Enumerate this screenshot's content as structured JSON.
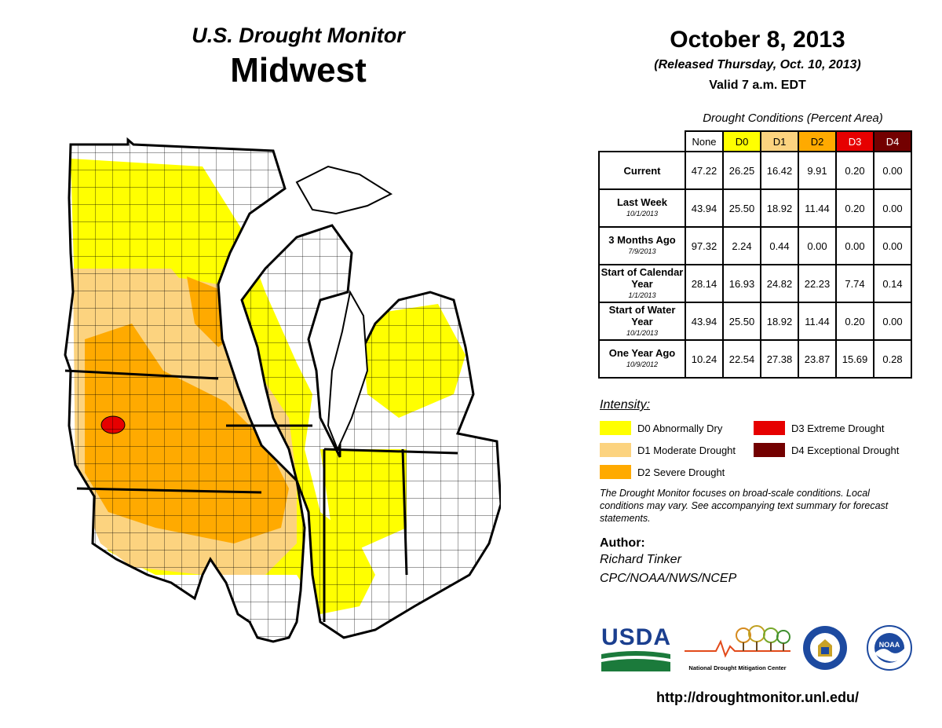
{
  "header": {
    "title": "U.S. Drought Monitor",
    "region": "Midwest",
    "date": "October 8, 2013",
    "released": "(Released Thursday, Oct. 10, 2013)",
    "valid": "Valid 7 a.m. EDT"
  },
  "table": {
    "caption": "Drought Conditions (Percent Area)",
    "columns": [
      {
        "label": "None",
        "color": "#ffffff"
      },
      {
        "label": "D0",
        "color": "#ffff00"
      },
      {
        "label": "D1",
        "color": "#fcd37f"
      },
      {
        "label": "D2",
        "color": "#ffaa00"
      },
      {
        "label": "D3",
        "color": "#e60000"
      },
      {
        "label": "D4",
        "color": "#730000"
      }
    ],
    "rows": [
      {
        "label": "Current",
        "sub": "",
        "values": [
          "47.22",
          "26.25",
          "16.42",
          "9.91",
          "0.20",
          "0.00"
        ]
      },
      {
        "label": "Last Week",
        "sub": "10/1/2013",
        "values": [
          "43.94",
          "25.50",
          "18.92",
          "11.44",
          "0.20",
          "0.00"
        ]
      },
      {
        "label": "3 Months Ago",
        "sub": "7/9/2013",
        "values": [
          "97.32",
          "2.24",
          "0.44",
          "0.00",
          "0.00",
          "0.00"
        ]
      },
      {
        "label": "Start of Calendar Year",
        "sub": "1/1/2013",
        "values": [
          "28.14",
          "16.93",
          "24.82",
          "22.23",
          "7.74",
          "0.14"
        ]
      },
      {
        "label": "Start of Water Year",
        "sub": "10/1/2013",
        "values": [
          "43.94",
          "25.50",
          "18.92",
          "11.44",
          "0.20",
          "0.00"
        ]
      },
      {
        "label": "One Year Ago",
        "sub": "10/9/2012",
        "values": [
          "10.24",
          "22.54",
          "27.38",
          "23.87",
          "15.69",
          "0.28"
        ]
      }
    ]
  },
  "legend": {
    "title": "Intensity:",
    "items": [
      {
        "label": "D0 Abnormally Dry",
        "color": "#ffff00"
      },
      {
        "label": "D1 Moderate Drought",
        "color": "#fcd37f"
      },
      {
        "label": "D2 Severe Drought",
        "color": "#ffaa00"
      },
      {
        "label": "D3 Extreme Drought",
        "color": "#e60000"
      },
      {
        "label": "D4 Exceptional Drought",
        "color": "#730000"
      }
    ]
  },
  "note": "The Drought Monitor focuses on broad-scale conditions. Local conditions may vary. See accompanying text summary for forecast statements.",
  "author": {
    "label": "Author:",
    "name": "Richard Tinker",
    "org": "CPC/NOAA/NWS/NCEP"
  },
  "logos": {
    "usda": "USDA",
    "ndmc": "National Drought Mitigation Center",
    "commerce_icon": "department-of-commerce-seal",
    "noaa": "NOAA"
  },
  "url": "http://droughtmonitor.unl.edu/"
}
